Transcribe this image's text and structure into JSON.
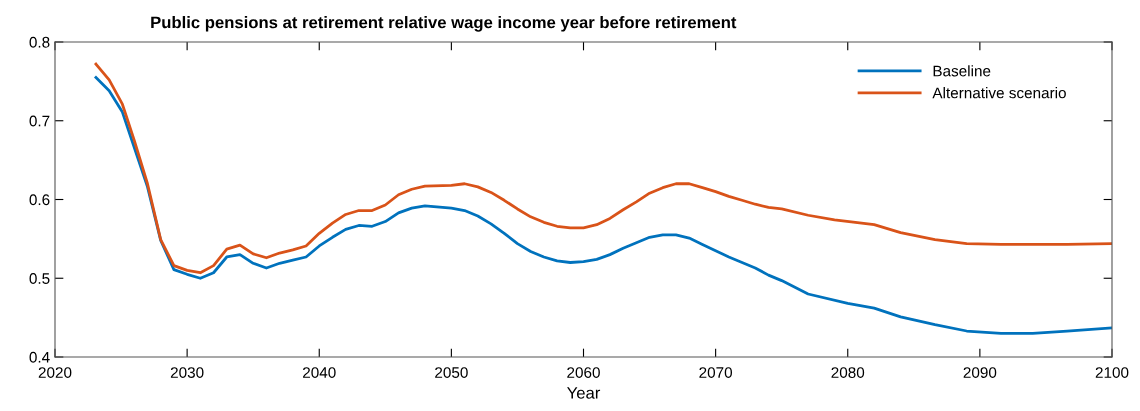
{
  "chart_data": {
    "type": "line",
    "title": "Public pensions at retirement relative wage income year before retirement",
    "xlabel": "Year",
    "xlim": [
      2020,
      2100
    ],
    "xticks": [
      2020,
      2030,
      2040,
      2050,
      2060,
      2070,
      2080,
      2090,
      2100
    ],
    "ylim": [
      0.4,
      0.8
    ],
    "yticks": [
      0.4,
      0.5,
      0.6,
      0.7,
      0.8
    ],
    "grid": false,
    "legend": "top right",
    "marker": "none",
    "line_style": "solid",
    "series": [
      {
        "name": "Baseline",
        "color": "#0072bd",
        "x": [
          2023.1,
          2024.1,
          2025.1,
          2026,
          2027,
          2028,
          2029,
          2030,
          2031,
          2032,
          2033,
          2034,
          2035,
          2036,
          2037,
          2038,
          2039,
          2040,
          2041,
          2042,
          2043,
          2044,
          2045,
          2046,
          2047,
          2048,
          2050,
          2051,
          2052,
          2053,
          2054,
          2055,
          2056,
          2057,
          2058,
          2059,
          2060,
          2061,
          2062,
          2063,
          2064,
          2065,
          2066,
          2067,
          2068,
          2069,
          2070,
          2071,
          2072,
          2073,
          2074,
          2075,
          2077,
          2080,
          2082,
          2084,
          2086.6,
          2089,
          2091.6,
          2094,
          2096.6,
          2100
        ],
        "values": [
          0.755,
          0.738,
          0.711,
          0.666,
          0.616,
          0.548,
          0.511,
          0.505,
          0.5,
          0.507,
          0.527,
          0.53,
          0.519,
          0.513,
          0.519,
          0.523,
          0.527,
          0.541,
          0.552,
          0.562,
          0.567,
          0.566,
          0.572,
          0.583,
          0.589,
          0.592,
          0.589,
          0.586,
          0.579,
          0.569,
          0.557,
          0.544,
          0.534,
          0.527,
          0.522,
          0.52,
          0.521,
          0.524,
          0.53,
          0.538,
          0.545,
          0.552,
          0.555,
          0.555,
          0.551,
          0.543,
          0.535,
          0.527,
          0.52,
          0.513,
          0.504,
          0.497,
          0.48,
          0.468,
          0.462,
          0.451,
          0.441,
          0.433,
          0.43,
          0.43,
          0.433,
          0.437
        ]
      },
      {
        "name": "Alternative scenario",
        "color": "#d95319",
        "x": [
          2023.1,
          2024.1,
          2025.1,
          2026,
          2027,
          2028,
          2029,
          2030,
          2031,
          2032,
          2033,
          2034,
          2035,
          2036,
          2037,
          2038,
          2039,
          2040,
          2041,
          2042,
          2043,
          2044,
          2045,
          2046,
          2047,
          2048,
          2050,
          2051,
          2052,
          2053,
          2054,
          2055,
          2056,
          2057,
          2058,
          2059,
          2060,
          2061,
          2062,
          2063,
          2064,
          2065,
          2066,
          2067,
          2068,
          2069,
          2070,
          2071,
          2072,
          2073,
          2074,
          2075,
          2077,
          2079,
          2082,
          2084,
          2086.6,
          2089,
          2091.6,
          2094,
          2096.6,
          2100
        ],
        "values": [
          0.772,
          0.752,
          0.721,
          0.675,
          0.62,
          0.549,
          0.516,
          0.51,
          0.507,
          0.516,
          0.537,
          0.542,
          0.531,
          0.526,
          0.532,
          0.536,
          0.541,
          0.557,
          0.57,
          0.581,
          0.586,
          0.586,
          0.593,
          0.606,
          0.613,
          0.617,
          0.618,
          0.62,
          0.616,
          0.609,
          0.599,
          0.588,
          0.578,
          0.571,
          0.566,
          0.564,
          0.564,
          0.568,
          0.576,
          0.587,
          0.597,
          0.608,
          0.615,
          0.62,
          0.62,
          0.615,
          0.61,
          0.604,
          0.599,
          0.594,
          0.59,
          0.588,
          0.58,
          0.574,
          0.568,
          0.558,
          0.549,
          0.544,
          0.543,
          0.543,
          0.543,
          0.544
        ]
      }
    ]
  }
}
